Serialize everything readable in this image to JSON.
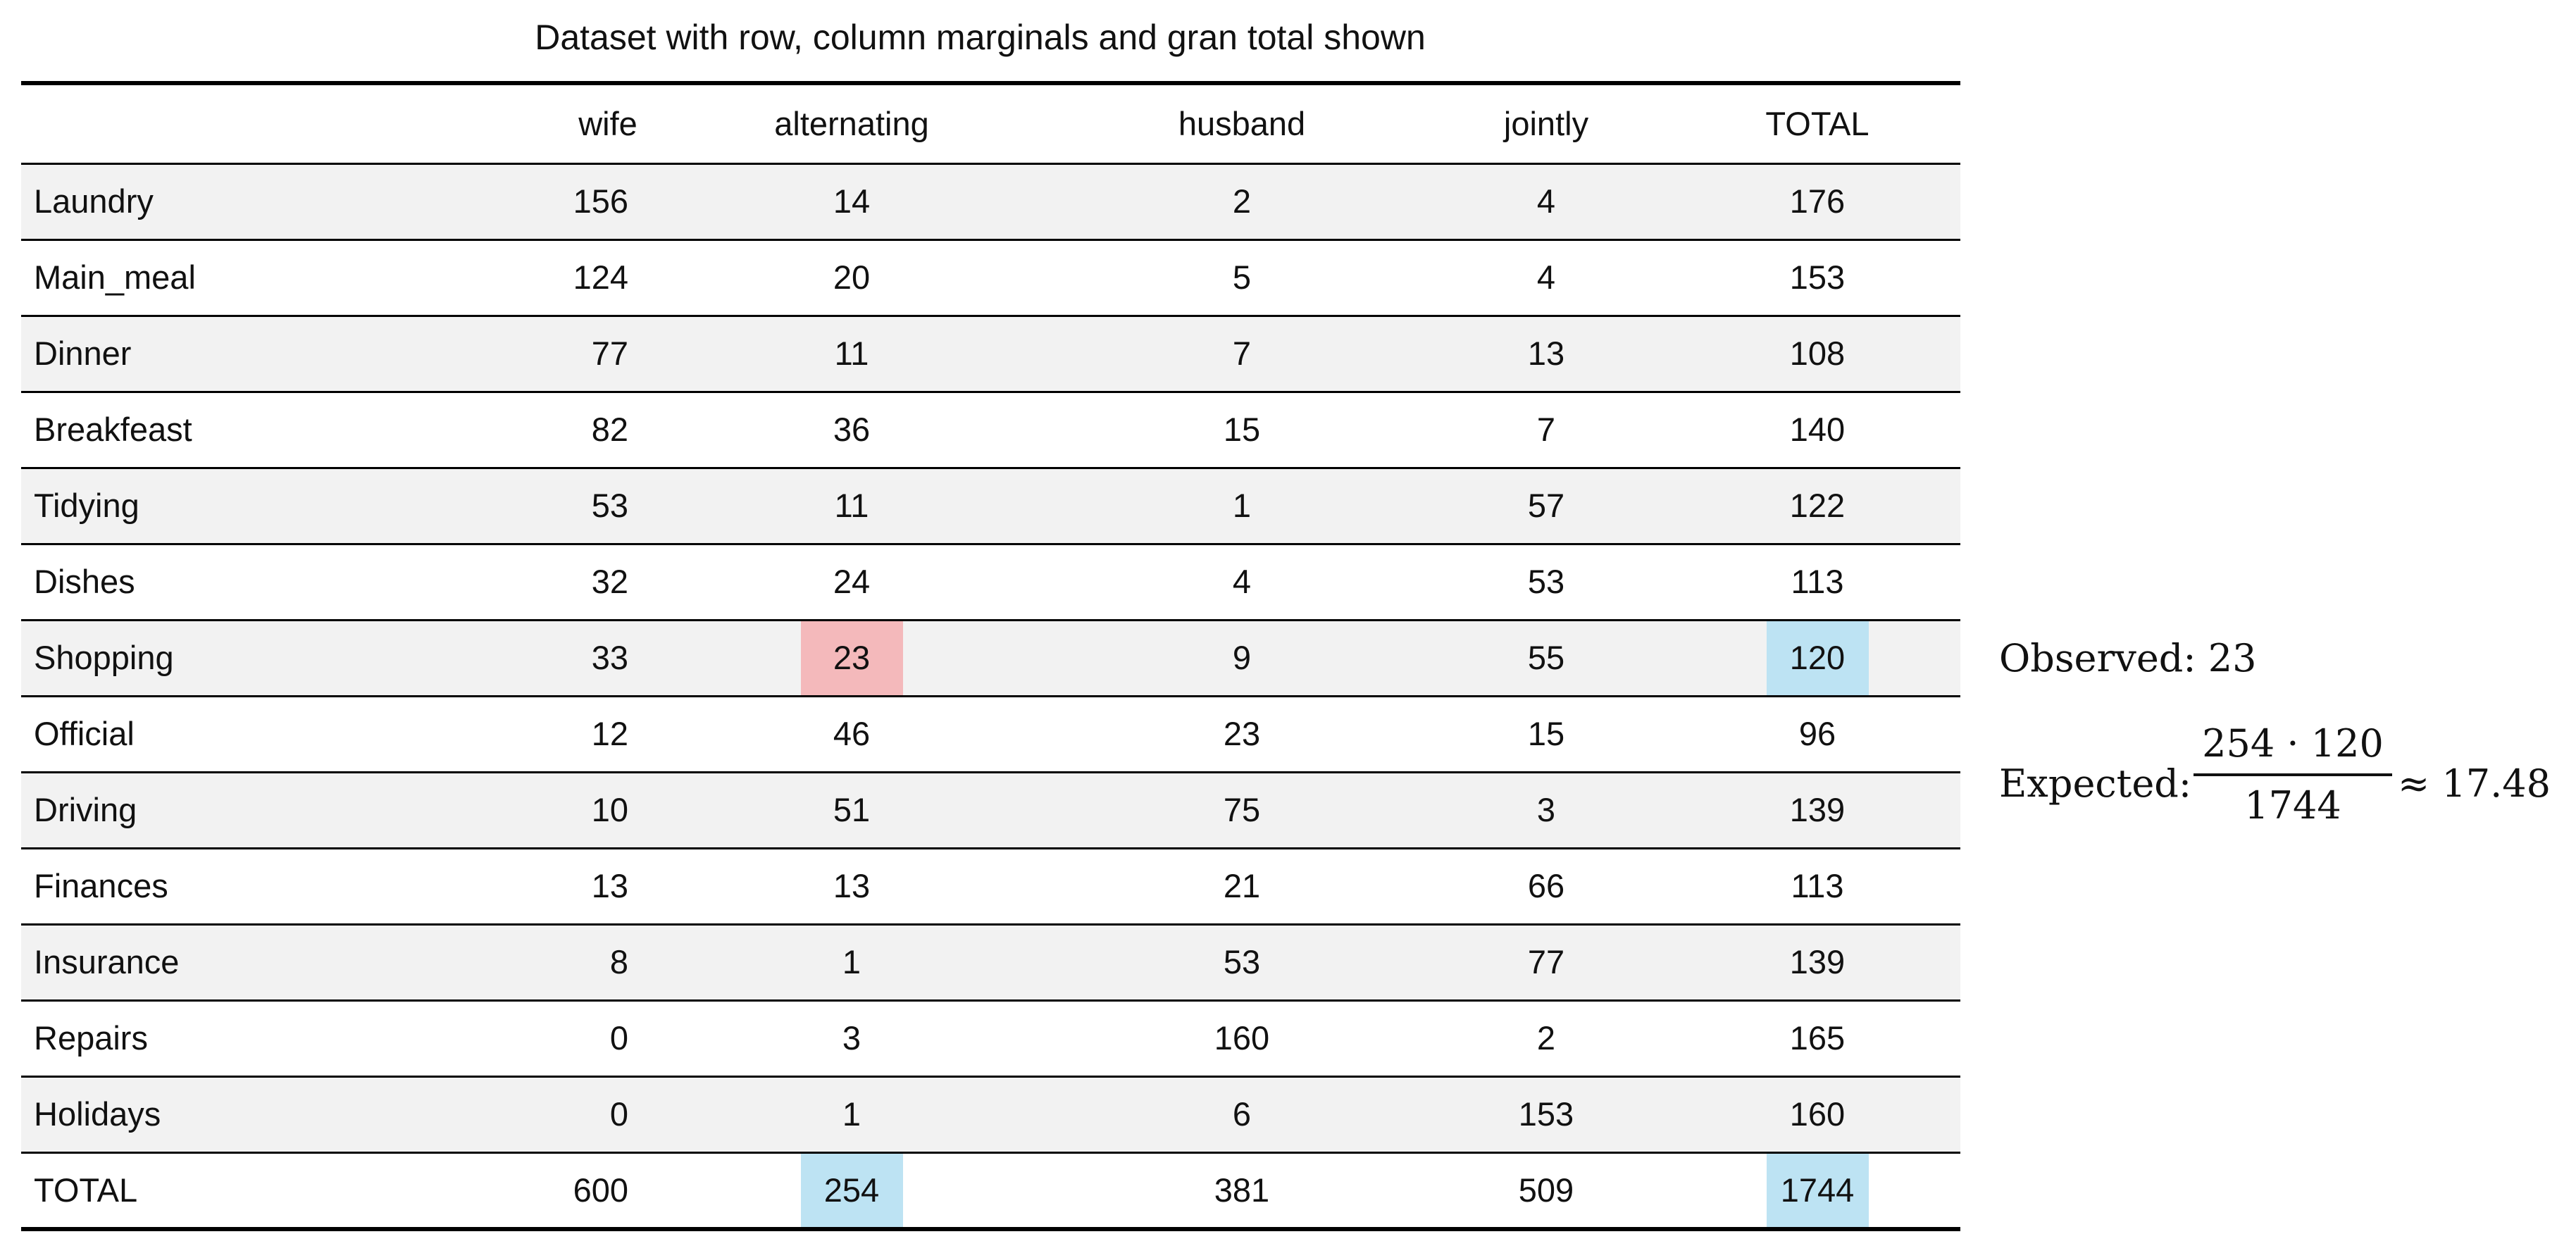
{
  "chart_data": {
    "type": "table",
    "title": "Dataset with row, column marginals and gran total shown",
    "columns": [
      "",
      "wife",
      "alternating",
      "husband",
      "jointly",
      "TOTAL"
    ],
    "rows": [
      {
        "label": "Laundry",
        "values": [
          "156",
          "14",
          "2",
          "4",
          "176"
        ]
      },
      {
        "label": "Main_meal",
        "values": [
          "124",
          "20",
          "5",
          "4",
          "153"
        ]
      },
      {
        "label": "Dinner",
        "values": [
          "77",
          "11",
          "7",
          "13",
          "108"
        ]
      },
      {
        "label": "Breakfeast",
        "values": [
          "82",
          "36",
          "15",
          "7",
          "140"
        ]
      },
      {
        "label": "Tidying",
        "values": [
          "53",
          "11",
          "1",
          "57",
          "122"
        ]
      },
      {
        "label": "Dishes",
        "values": [
          "32",
          "24",
          "4",
          "53",
          "113"
        ]
      },
      {
        "label": "Shopping",
        "values": [
          "33",
          "23",
          "9",
          "55",
          "120"
        ]
      },
      {
        "label": "Official",
        "values": [
          "12",
          "46",
          "23",
          "15",
          "96"
        ]
      },
      {
        "label": "Driving",
        "values": [
          "10",
          "51",
          "75",
          "3",
          "139"
        ]
      },
      {
        "label": "Finances",
        "values": [
          "13",
          "13",
          "21",
          "66",
          "113"
        ]
      },
      {
        "label": "Insurance",
        "values": [
          "8",
          "1",
          "53",
          "77",
          "139"
        ]
      },
      {
        "label": "Repairs",
        "values": [
          "0",
          "3",
          "160",
          "2",
          "165"
        ]
      },
      {
        "label": "Holidays",
        "values": [
          "0",
          "1",
          "6",
          "153",
          "160"
        ]
      },
      {
        "label": "TOTAL",
        "values": [
          "600",
          "254",
          "381",
          "509",
          "1744"
        ]
      }
    ],
    "highlights": [
      {
        "row": 6,
        "col": 1,
        "color": "#f4b9bb"
      },
      {
        "row": 6,
        "col": 4,
        "color": "#bde3f3"
      },
      {
        "row": 13,
        "col": 1,
        "color": "#bde3f3"
      },
      {
        "row": 13,
        "col": 4,
        "color": "#bde3f3"
      }
    ],
    "annotations": {
      "observed_label": "Observed: 23",
      "expected_label": "Expected:",
      "expected_numerator": "254 · 120",
      "expected_denominator": "1744",
      "expected_result": "≈ 17.48"
    }
  }
}
